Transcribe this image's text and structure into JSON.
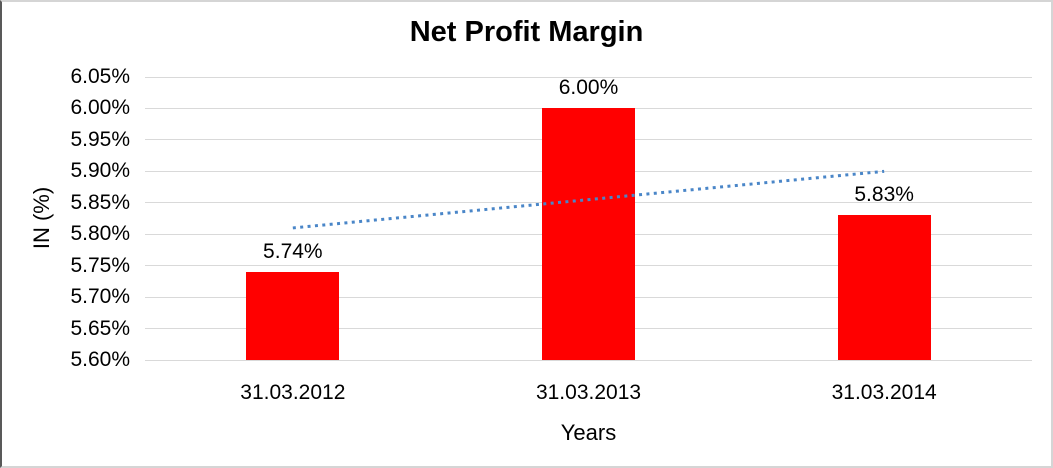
{
  "chart": {
    "title": "Net Profit Margin",
    "y_axis_title": "IN (%)",
    "x_axis_title": "Years"
  },
  "chart_data": {
    "type": "bar",
    "title": "Net Profit Margin",
    "xlabel": "Years",
    "ylabel": "IN (%)",
    "categories": [
      "31.03.2012",
      "31.03.2013",
      "31.03.2014"
    ],
    "series": [
      {
        "name": "Net Profit Margin",
        "values": [
          5.74,
          6.0,
          5.83
        ]
      }
    ],
    "value_labels": [
      "5.74%",
      "6.00%",
      "5.83%"
    ],
    "ylim": [
      5.6,
      6.05
    ],
    "y_tick_step": 0.05,
    "y_ticks": [
      {
        "label": "6.05%",
        "value": 6.05
      },
      {
        "label": "6.00%",
        "value": 6.0
      },
      {
        "label": "5.95%",
        "value": 5.95
      },
      {
        "label": "5.90%",
        "value": 5.9
      },
      {
        "label": "5.85%",
        "value": 5.85
      },
      {
        "label": "5.80%",
        "value": 5.8
      },
      {
        "label": "5.75%",
        "value": 5.75
      },
      {
        "label": "5.70%",
        "value": 5.7
      },
      {
        "label": "5.65%",
        "value": 5.65
      },
      {
        "label": "5.60%",
        "value": 5.6
      }
    ],
    "grid": true,
    "legend": "none",
    "bar_color": "#FF0000",
    "gridline_color": "#D9D9D9",
    "trendline": {
      "type": "linear",
      "style": "dotted",
      "color": "#4A86C8",
      "start_value": 5.81,
      "end_value": 5.9
    }
  }
}
